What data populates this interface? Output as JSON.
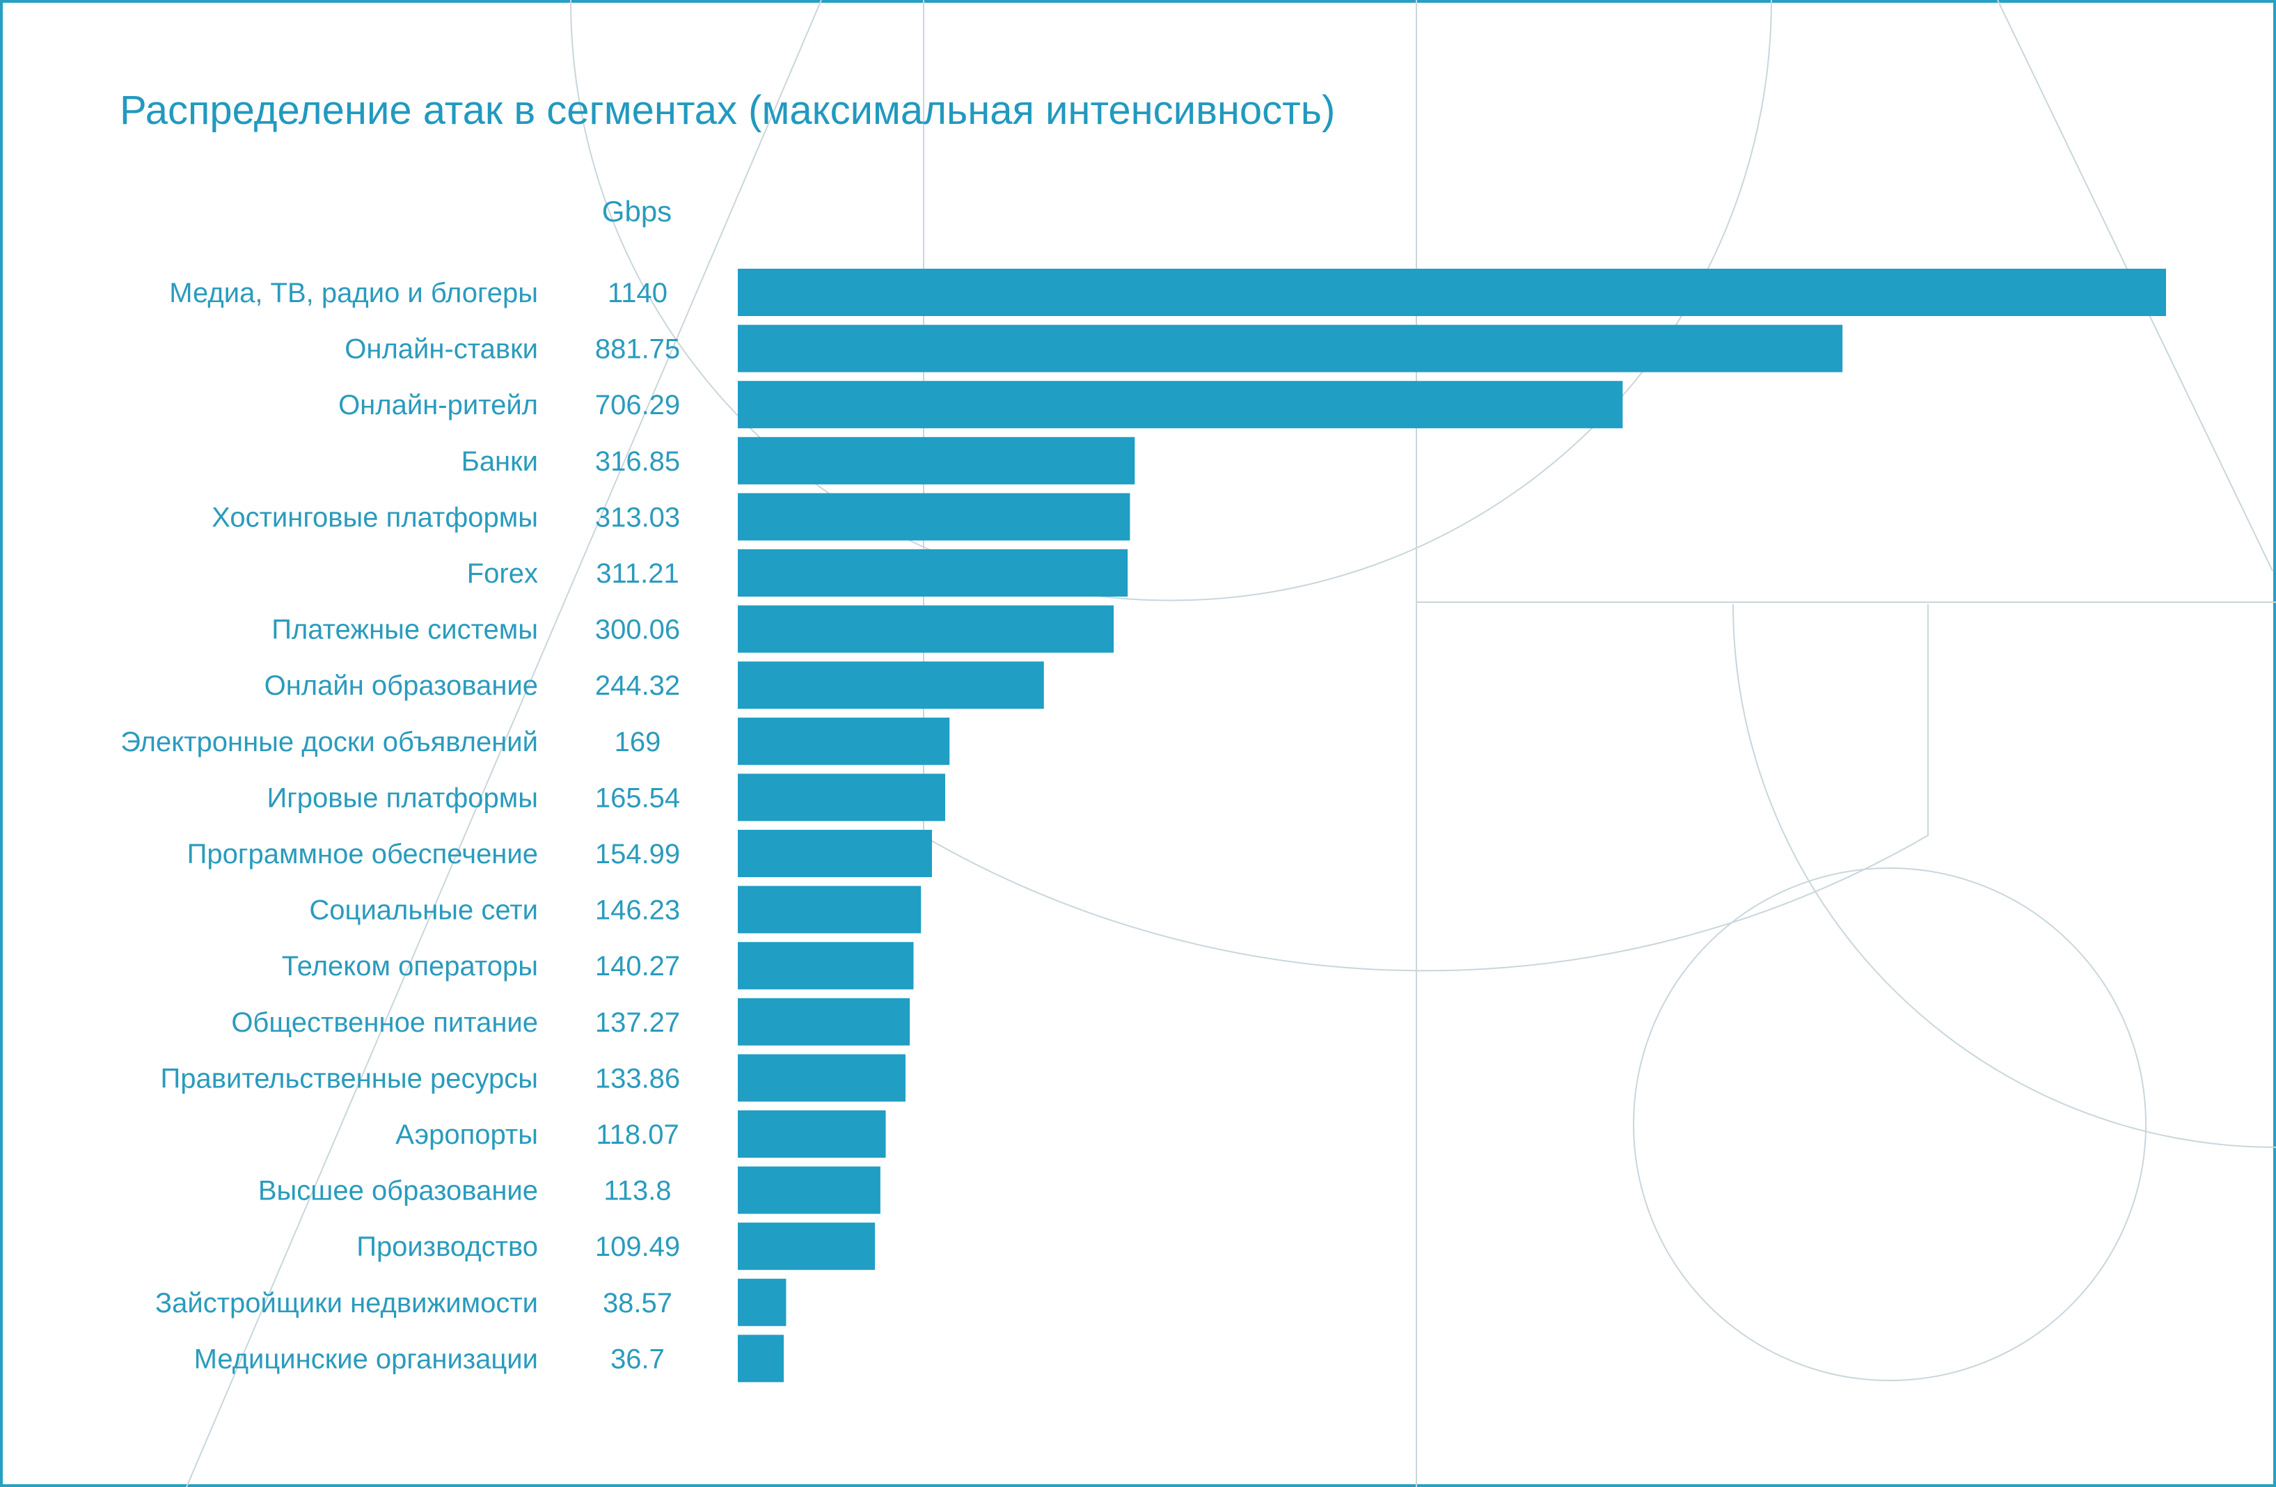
{
  "colors": {
    "bar": "#209ec4",
    "text": "#2a9bbd",
    "frame": "#27a0c2",
    "decor": "#c9d6dc"
  },
  "chart_data": {
    "type": "bar",
    "orientation": "horizontal",
    "title": "Распределение атак в сегментах (максимальная интенсивность)",
    "unit_label": "Gbps",
    "categories": [
      "Медиа, ТВ, радио и блогеры",
      "Онлайн-ставки",
      "Онлайн-ритейл",
      "Банки",
      "Хостинговые платформы",
      "Forex",
      "Платежные системы",
      "Онлайн образование",
      "Электронные доски объявлений",
      "Игровые платформы",
      "Программное обеспечение",
      "Социальные сети",
      "Телеком операторы",
      "Общественное питание",
      "Правительственные ресурсы",
      "Аэропорты",
      "Высшее образование",
      "Производство",
      "Зайстройщики недвижимости",
      "Медицинские организации"
    ],
    "values": [
      1140,
      881.75,
      706.29,
      316.85,
      313.03,
      311.21,
      300.06,
      244.32,
      169,
      165.54,
      154.99,
      146.23,
      140.27,
      137.27,
      133.86,
      118.07,
      113.8,
      109.49,
      38.57,
      36.7
    ],
    "value_labels": [
      "1140",
      "881.75",
      "706.29",
      "316.85",
      "313.03",
      "311.21",
      "300.06",
      "244.32",
      "169",
      "165.54",
      "154.99",
      "146.23",
      "140.27",
      "137.27",
      "133.86",
      "118.07",
      "113.8",
      "109.49",
      "38.57",
      "36.7"
    ],
    "xlim": [
      0,
      1140
    ],
    "grid": false,
    "legend": "none"
  }
}
